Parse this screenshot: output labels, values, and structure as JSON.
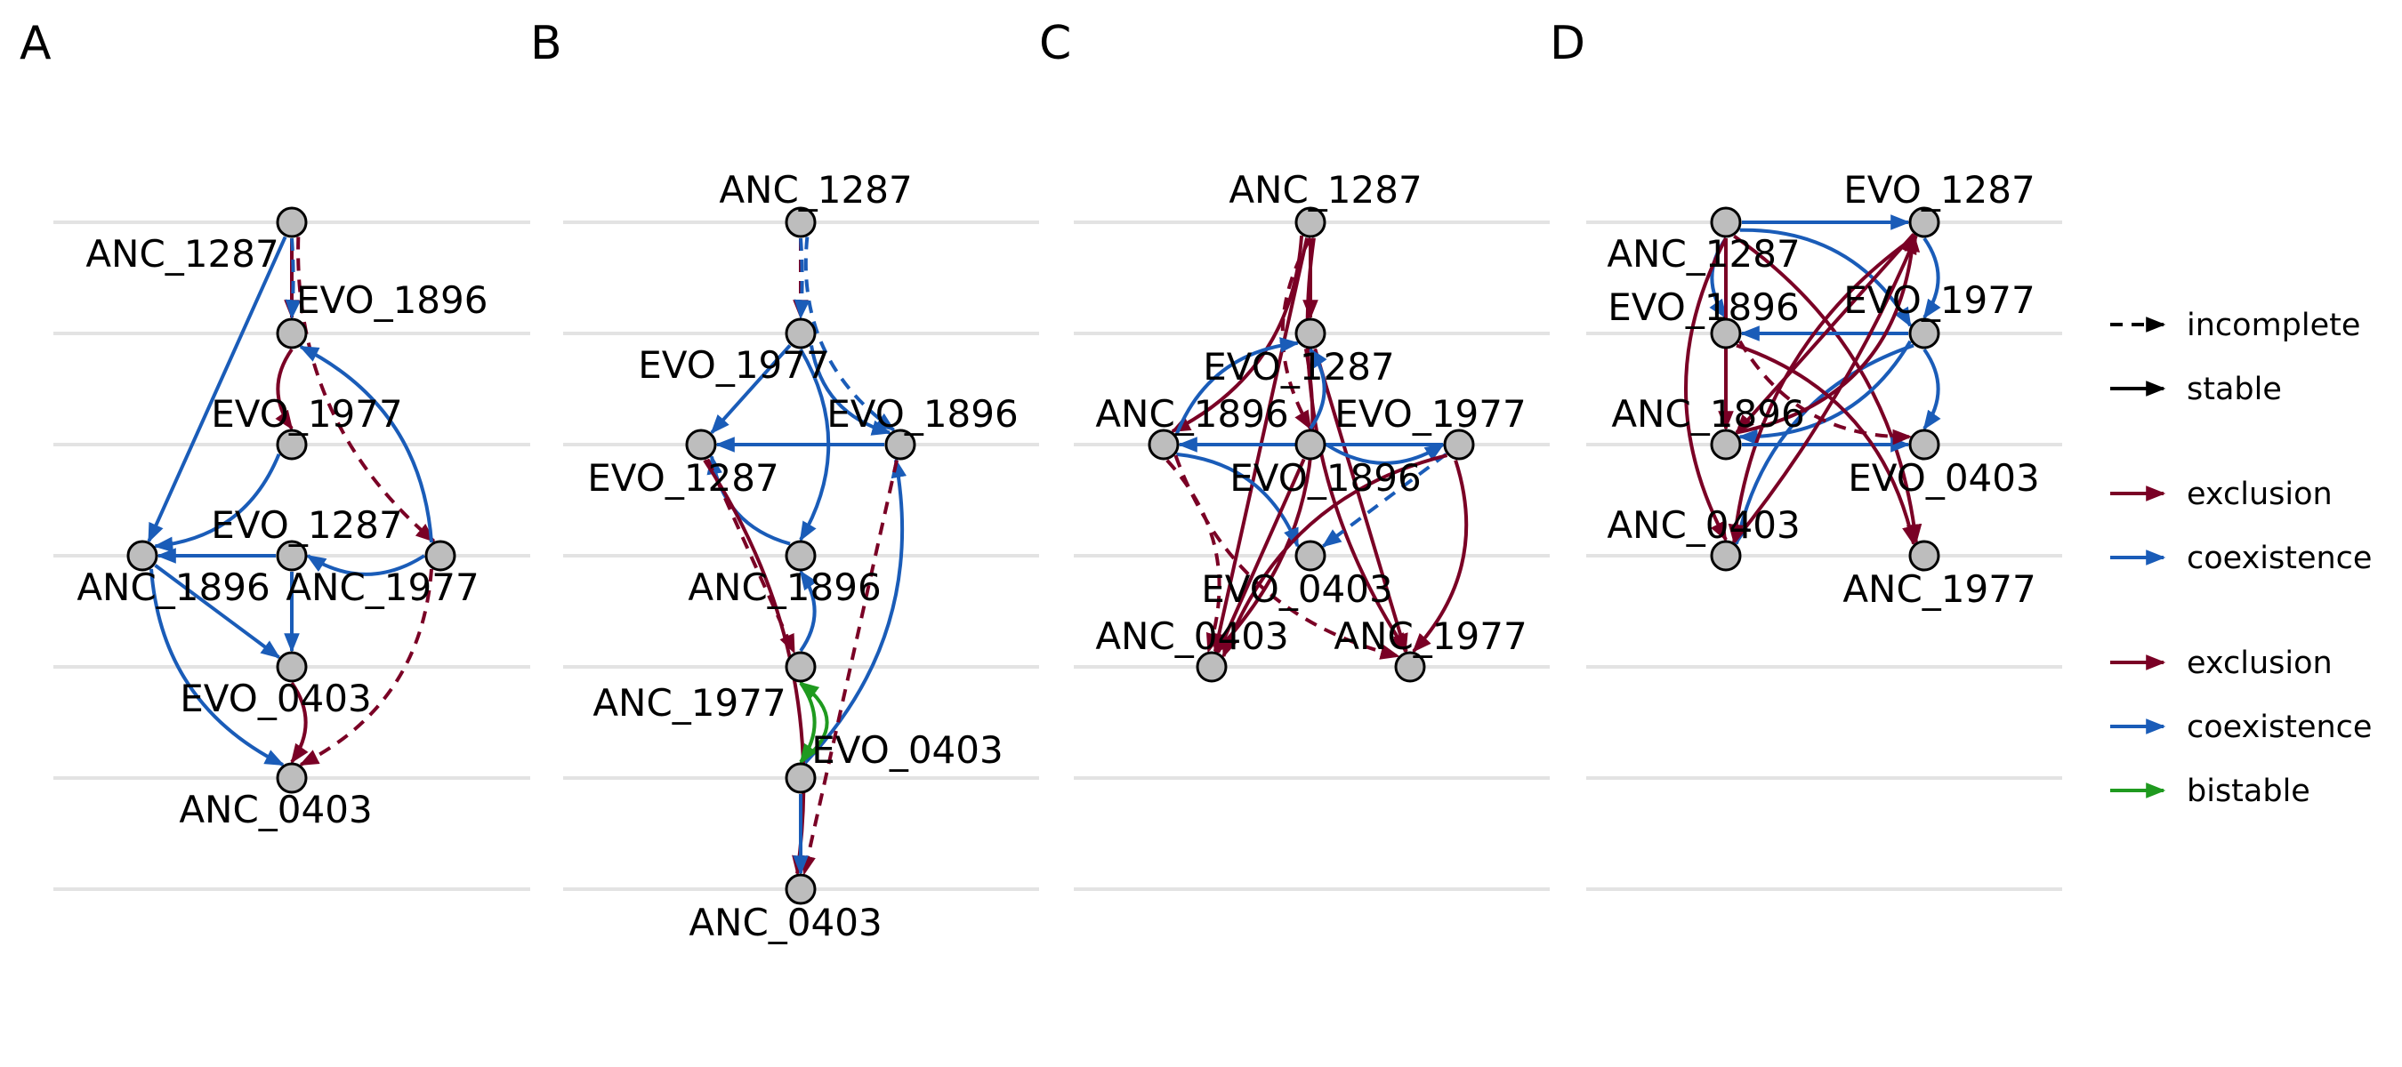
{
  "colors": {
    "exclusion": "#7a0025",
    "coexistence": "#1a5cb8",
    "bistable": "#1f9a1f",
    "node_fill": "#bdbdbd",
    "grid": "#e3e3e3"
  },
  "panels": [
    {
      "letter": "A",
      "nodes": [
        {
          "id": "ANC_1287",
          "label": "ANC_1287"
        },
        {
          "id": "EVO_1896",
          "label": "EVO_1896"
        },
        {
          "id": "EVO_1977",
          "label": "EVO_1977"
        },
        {
          "id": "EVO_1287",
          "label": "EVO_1287"
        },
        {
          "id": "ANC_1896",
          "label": "ANC_1896"
        },
        {
          "id": "ANC_1977",
          "label": "ANC_1977"
        },
        {
          "id": "EVO_0403",
          "label": "EVO_0403"
        },
        {
          "id": "ANC_0403",
          "label": "ANC_0403"
        }
      ],
      "edges": [
        {
          "from": "ANC_1287",
          "to": "EVO_1896",
          "kind": "exclusion",
          "status": "stable"
        },
        {
          "from": "ANC_1287",
          "to": "EVO_1896",
          "kind": "coexistence",
          "status": "incomplete"
        },
        {
          "from": "ANC_1287",
          "to": "ANC_1977",
          "kind": "exclusion",
          "status": "incomplete"
        },
        {
          "from": "ANC_1287",
          "to": "ANC_1896",
          "kind": "coexistence",
          "status": "stable"
        },
        {
          "from": "EVO_1896",
          "to": "EVO_1977",
          "kind": "exclusion",
          "status": "stable"
        },
        {
          "from": "EVO_1977",
          "to": "ANC_1896",
          "kind": "coexistence",
          "status": "stable"
        },
        {
          "from": "EVO_1287",
          "to": "ANC_1896",
          "kind": "coexistence",
          "status": "stable"
        },
        {
          "from": "ANC_1977",
          "to": "EVO_1287",
          "kind": "coexistence",
          "status": "stable"
        },
        {
          "from": "ANC_1977",
          "to": "EVO_1896",
          "kind": "coexistence",
          "status": "stable"
        },
        {
          "from": "ANC_1896",
          "to": "EVO_0403",
          "kind": "coexistence",
          "status": "stable"
        },
        {
          "from": "ANC_1896",
          "to": "ANC_0403",
          "kind": "coexistence",
          "status": "stable"
        },
        {
          "from": "ANC_1977",
          "to": "ANC_0403",
          "kind": "exclusion",
          "status": "incomplete"
        },
        {
          "from": "EVO_1287",
          "to": "EVO_0403",
          "kind": "coexistence",
          "status": "stable"
        },
        {
          "from": "EVO_0403",
          "to": "ANC_0403",
          "kind": "exclusion",
          "status": "stable"
        }
      ]
    },
    {
      "letter": "B",
      "nodes": [
        {
          "id": "ANC_1287",
          "label": "ANC_1287"
        },
        {
          "id": "EVO_1977",
          "label": "EVO_1977"
        },
        {
          "id": "EVO_1287",
          "label": "EVO_1287"
        },
        {
          "id": "EVO_1896",
          "label": "EVO_1896"
        },
        {
          "id": "ANC_1896",
          "label": "ANC_1896"
        },
        {
          "id": "ANC_1977",
          "label": "ANC_1977"
        },
        {
          "id": "EVO_0403",
          "label": "EVO_0403"
        },
        {
          "id": "ANC_0403",
          "label": "ANC_0403"
        }
      ],
      "edges": [
        {
          "from": "ANC_1287",
          "to": "EVO_1977",
          "kind": "exclusion",
          "status": "incomplete"
        },
        {
          "from": "ANC_1287",
          "to": "EVO_1977",
          "kind": "coexistence",
          "status": "incomplete"
        },
        {
          "from": "ANC_1287",
          "to": "EVO_1896",
          "kind": "coexistence",
          "status": "incomplete"
        },
        {
          "from": "EVO_1977",
          "to": "EVO_1287",
          "kind": "coexistence",
          "status": "stable"
        },
        {
          "from": "EVO_1977",
          "to": "EVO_1896",
          "kind": "coexistence",
          "status": "stable"
        },
        {
          "from": "EVO_1977",
          "to": "ANC_1896",
          "kind": "coexistence",
          "status": "stable"
        },
        {
          "from": "EVO_1896",
          "to": "EVO_1287",
          "kind": "coexistence",
          "status": "stable"
        },
        {
          "from": "ANC_1896",
          "to": "EVO_1287",
          "kind": "coexistence",
          "status": "stable"
        },
        {
          "from": "ANC_1977",
          "to": "ANC_1896",
          "kind": "coexistence",
          "status": "stable"
        },
        {
          "from": "EVO_1287",
          "to": "ANC_1977",
          "kind": "exclusion",
          "status": "incomplete"
        },
        {
          "from": "EVO_0403",
          "to": "EVO_1896",
          "kind": "coexistence",
          "status": "stable"
        },
        {
          "from": "EVO_1287",
          "to": "ANC_0403",
          "kind": "exclusion",
          "status": "stable"
        },
        {
          "from": "EVO_1896",
          "to": "ANC_0403",
          "kind": "exclusion",
          "status": "incomplete"
        },
        {
          "from": "ANC_1977",
          "to": "EVO_0403",
          "kind": "bistable",
          "status": "stable"
        },
        {
          "from": "EVO_0403",
          "to": "ANC_1977",
          "kind": "bistable",
          "status": "stable"
        },
        {
          "from": "EVO_0403",
          "to": "ANC_0403",
          "kind": "coexistence",
          "status": "stable"
        }
      ]
    },
    {
      "letter": "C",
      "nodes": [
        {
          "id": "ANC_1287",
          "label": "ANC_1287"
        },
        {
          "id": "EVO_1287",
          "label": "EVO_1287"
        },
        {
          "id": "ANC_1896",
          "label": "ANC_1896"
        },
        {
          "id": "EVO_1977",
          "label": "EVO_1977"
        },
        {
          "id": "EVO_1896",
          "label": "EVO_1896"
        },
        {
          "id": "EVO_0403",
          "label": "EVO_0403"
        },
        {
          "id": "ANC_0403",
          "label": "ANC_0403"
        },
        {
          "id": "ANC_1977",
          "label": "ANC_1977"
        }
      ],
      "edges": [
        {
          "from": "ANC_1287",
          "to": "EVO_1287",
          "kind": "exclusion",
          "status": "stable"
        },
        {
          "from": "ANC_1287",
          "to": "ANC_1896",
          "kind": "exclusion",
          "status": "stable"
        },
        {
          "from": "ANC_1287",
          "to": "EVO_1977",
          "kind": "exclusion",
          "status": "incomplete"
        },
        {
          "from": "ANC_1287",
          "to": "ANC_0403",
          "kind": "exclusion",
          "status": "stable"
        },
        {
          "from": "ANC_1287",
          "to": "ANC_1977",
          "kind": "exclusion",
          "status": "stable"
        },
        {
          "from": "EVO_1287",
          "to": "ANC_0403",
          "kind": "exclusion",
          "status": "stable"
        },
        {
          "from": "EVO_1287",
          "to": "ANC_1977",
          "kind": "exclusion",
          "status": "stable"
        },
        {
          "from": "ANC_1896",
          "to": "EVO_1287",
          "kind": "coexistence",
          "status": "stable"
        },
        {
          "from": "EVO_1977",
          "to": "EVO_1287",
          "kind": "coexistence",
          "status": "stable"
        },
        {
          "from": "EVO_1896",
          "to": "ANC_1896",
          "kind": "coexistence",
          "status": "stable"
        },
        {
          "from": "EVO_1977",
          "to": "EVO_1896",
          "kind": "coexistence",
          "status": "stable"
        },
        {
          "from": "ANC_1896",
          "to": "EVO_0403",
          "kind": "coexistence",
          "status": "stable"
        },
        {
          "from": "EVO_1896",
          "to": "EVO_0403",
          "kind": "coexistence",
          "status": "incomplete"
        },
        {
          "from": "ANC_1896",
          "to": "ANC_0403",
          "kind": "exclusion",
          "status": "incomplete"
        },
        {
          "from": "ANC_1896",
          "to": "ANC_1977",
          "kind": "exclusion",
          "status": "incomplete"
        },
        {
          "from": "EVO_1977",
          "to": "ANC_0403",
          "kind": "exclusion",
          "status": "stable"
        },
        {
          "from": "EVO_1896",
          "to": "ANC_0403",
          "kind": "exclusion",
          "status": "stable"
        },
        {
          "from": "EVO_1896",
          "to": "ANC_1977",
          "kind": "exclusion",
          "status": "stable"
        }
      ]
    },
    {
      "letter": "D",
      "nodes": [
        {
          "id": "ANC_1287",
          "label": "ANC_1287"
        },
        {
          "id": "EVO_1287",
          "label": "EVO_1287"
        },
        {
          "id": "EVO_1896",
          "label": "EVO_1896"
        },
        {
          "id": "EVO_1977",
          "label": "EVO_1977"
        },
        {
          "id": "ANC_1896",
          "label": "ANC_1896"
        },
        {
          "id": "EVO_0403",
          "label": "EVO_0403"
        },
        {
          "id": "ANC_0403",
          "label": "ANC_0403"
        },
        {
          "id": "ANC_1977",
          "label": "ANC_1977"
        }
      ],
      "edges": [
        {
          "from": "ANC_1287",
          "to": "EVO_1287",
          "kind": "coexistence",
          "status": "stable"
        },
        {
          "from": "ANC_1287",
          "to": "EVO_1977",
          "kind": "coexistence",
          "status": "stable"
        },
        {
          "from": "ANC_1287",
          "to": "EVO_1896",
          "kind": "coexistence",
          "status": "stable"
        },
        {
          "from": "ANC_1287",
          "to": "ANC_1896",
          "kind": "exclusion",
          "status": "stable"
        },
        {
          "from": "ANC_1287",
          "to": "ANC_0403",
          "kind": "exclusion",
          "status": "stable"
        },
        {
          "from": "ANC_1287",
          "to": "ANC_1977",
          "kind": "exclusion",
          "status": "stable"
        },
        {
          "from": "EVO_1977",
          "to": "EVO_1896",
          "kind": "coexistence",
          "status": "stable"
        },
        {
          "from": "EVO_1977",
          "to": "ANC_1896",
          "kind": "coexistence",
          "status": "stable"
        },
        {
          "from": "EVO_1977",
          "to": "ANC_0403",
          "kind": "coexistence",
          "status": "stable"
        },
        {
          "from": "EVO_1287",
          "to": "ANC_1896",
          "kind": "exclusion",
          "status": "stable"
        },
        {
          "from": "EVO_1287",
          "to": "ANC_0403",
          "kind": "exclusion",
          "status": "stable"
        },
        {
          "from": "EVO_1287",
          "to": "EVO_1977",
          "kind": "coexistence",
          "status": "stable"
        },
        {
          "from": "ANC_1896",
          "to": "EVO_0403",
          "kind": "coexistence",
          "status": "stable"
        },
        {
          "from": "EVO_1896",
          "to": "ANC_1977",
          "kind": "exclusion",
          "status": "stable"
        },
        {
          "from": "EVO_1896",
          "to": "EVO_0403",
          "kind": "exclusion",
          "status": "incomplete"
        },
        {
          "from": "ANC_0403",
          "to": "EVO_1287",
          "kind": "exclusion",
          "status": "stable"
        },
        {
          "from": "ANC_1896",
          "to": "EVO_1287",
          "kind": "exclusion",
          "status": "stable"
        },
        {
          "from": "EVO_1977",
          "to": "EVO_0403",
          "kind": "coexistence",
          "status": "stable"
        }
      ]
    }
  ],
  "legend": [
    {
      "label": "incomplete",
      "color": "#000000",
      "style": "dashed"
    },
    {
      "label": "stable",
      "color": "#000000",
      "style": "solid"
    },
    {
      "label": "exclusion",
      "color": "#7a0025",
      "style": "solid"
    },
    {
      "label": "coexistence",
      "color": "#1a5cb8",
      "style": "solid"
    },
    {
      "label": "exclusion",
      "color": "#7a0025",
      "style": "solid"
    },
    {
      "label": "coexistence",
      "color": "#1a5cb8",
      "style": "solid"
    },
    {
      "label": "bistable",
      "color": "#1f9a1f",
      "style": "solid"
    }
  ]
}
